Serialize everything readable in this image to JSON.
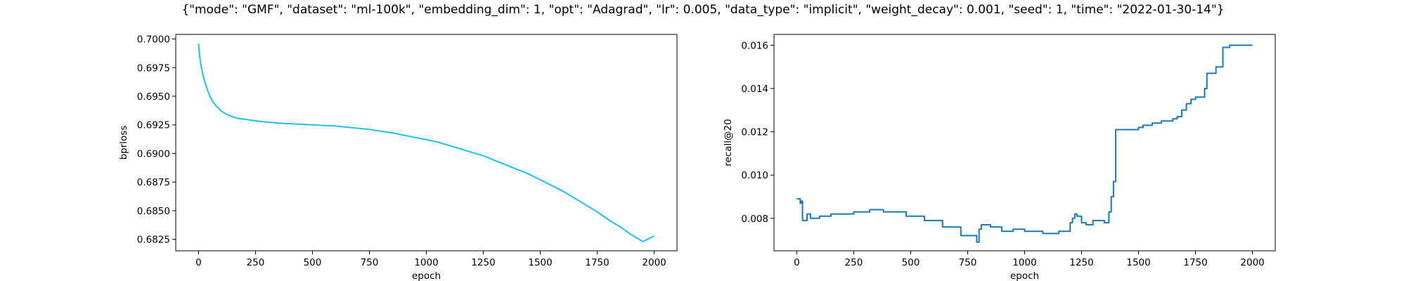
{
  "figure": {
    "title": "{\"mode\": \"GMF\", \"dataset\": \"ml-100k\", \"embedding_dim\": 1, \"opt\": \"Adagrad\", \"lr\": 0.005, \"data_type\": \"implicit\", \"weight_decay\": 0.001, \"seed\": 1, \"time\": \"2022-01-30-14\"}"
  },
  "chart_data": [
    {
      "type": "line",
      "xlabel": "epoch",
      "ylabel": "bprloss",
      "xlim": [
        -100,
        2100
      ],
      "ylim": [
        0.6815,
        0.7004
      ],
      "xticks": [
        0,
        250,
        500,
        750,
        1000,
        1250,
        1500,
        1750,
        2000
      ],
      "xtick_labels": [
        "0",
        "250",
        "500",
        "750",
        "1000",
        "1250",
        "1500",
        "1750",
        "2000"
      ],
      "yticks": [
        0.6825,
        0.685,
        0.6875,
        0.69,
        0.6925,
        0.695,
        0.6975,
        0.7
      ],
      "ytick_labels": [
        "0.6825",
        "0.6850",
        "0.6875",
        "0.6900",
        "0.6925",
        "0.6950",
        "0.6975",
        "0.7000"
      ],
      "grid": false,
      "color": "#1fc0f0",
      "series": [
        {
          "x": [
            0,
            5,
            10,
            20,
            30,
            40,
            50,
            60,
            75,
            100,
            125,
            150,
            175,
            200,
            250,
            300,
            350,
            400,
            450,
            500,
            550,
            600,
            650,
            700,
            750,
            800,
            850,
            900,
            950,
            1000,
            1050,
            1100,
            1150,
            1200,
            1250,
            1300,
            1350,
            1400,
            1450,
            1500,
            1550,
            1600,
            1650,
            1700,
            1750,
            1800,
            1850,
            1900,
            1950,
            2000
          ],
          "y": [
            0.6996,
            0.6985,
            0.6978,
            0.6968,
            0.6961,
            0.6955,
            0.695,
            0.6946,
            0.6942,
            0.6937,
            0.6934,
            0.6932,
            0.69305,
            0.693,
            0.69285,
            0.69275,
            0.69265,
            0.6926,
            0.69255,
            0.6925,
            0.69245,
            0.6924,
            0.6923,
            0.6922,
            0.6921,
            0.69195,
            0.6918,
            0.6916,
            0.6914,
            0.6912,
            0.691,
            0.6907,
            0.6904,
            0.6901,
            0.6898,
            0.6894,
            0.689,
            0.6886,
            0.6882,
            0.6877,
            0.6872,
            0.6867,
            0.6861,
            0.6855,
            0.6849,
            0.6842,
            0.6836,
            0.6829,
            0.6823,
            0.6828
          ]
        }
      ]
    },
    {
      "type": "line",
      "xlabel": "epoch",
      "ylabel": "recall@20",
      "xlim": [
        -100,
        2100
      ],
      "ylim": [
        0.0065,
        0.0165
      ],
      "xticks": [
        0,
        250,
        500,
        750,
        1000,
        1250,
        1500,
        1750,
        2000
      ],
      "xtick_labels": [
        "0",
        "250",
        "500",
        "750",
        "1000",
        "1250",
        "1500",
        "1750",
        "2000"
      ],
      "yticks": [
        0.008,
        0.01,
        0.012,
        0.014,
        0.016
      ],
      "ytick_labels": [
        "0.008",
        "0.010",
        "0.012",
        "0.014",
        "0.016"
      ],
      "grid": false,
      "color": "#1f77b4",
      "step": true,
      "series": [
        {
          "x": [
            0,
            10,
            15,
            20,
            25,
            30,
            45,
            60,
            100,
            150,
            250,
            320,
            380,
            480,
            560,
            640,
            710,
            720,
            780,
            790,
            800,
            810,
            850,
            900,
            950,
            1000,
            1080,
            1150,
            1200,
            1210,
            1220,
            1230,
            1250,
            1270,
            1300,
            1350,
            1370,
            1380,
            1390,
            1400,
            1430,
            1500,
            1520,
            1560,
            1600,
            1650,
            1670,
            1690,
            1710,
            1730,
            1750,
            1790,
            1800,
            1830,
            1840,
            1870,
            1880,
            1900,
            1950,
            2000
          ],
          "y": [
            0.0089,
            0.0089,
            0.0087,
            0.0088,
            0.0079,
            0.0079,
            0.0082,
            0.008,
            0.0081,
            0.0082,
            0.0083,
            0.0084,
            0.0083,
            0.0081,
            0.0079,
            0.0076,
            0.0076,
            0.0072,
            0.0072,
            0.0069,
            0.0075,
            0.0077,
            0.0076,
            0.0074,
            0.0075,
            0.0074,
            0.0073,
            0.0074,
            0.0078,
            0.008,
            0.0082,
            0.0081,
            0.0078,
            0.0077,
            0.0079,
            0.0078,
            0.0083,
            0.009,
            0.0097,
            0.0121,
            0.0121,
            0.0122,
            0.0123,
            0.0124,
            0.0125,
            0.0126,
            0.0127,
            0.013,
            0.0133,
            0.0135,
            0.0136,
            0.014,
            0.0147,
            0.0147,
            0.015,
            0.0159,
            0.0159,
            0.016,
            0.016,
            0.016
          ]
        }
      ]
    }
  ]
}
